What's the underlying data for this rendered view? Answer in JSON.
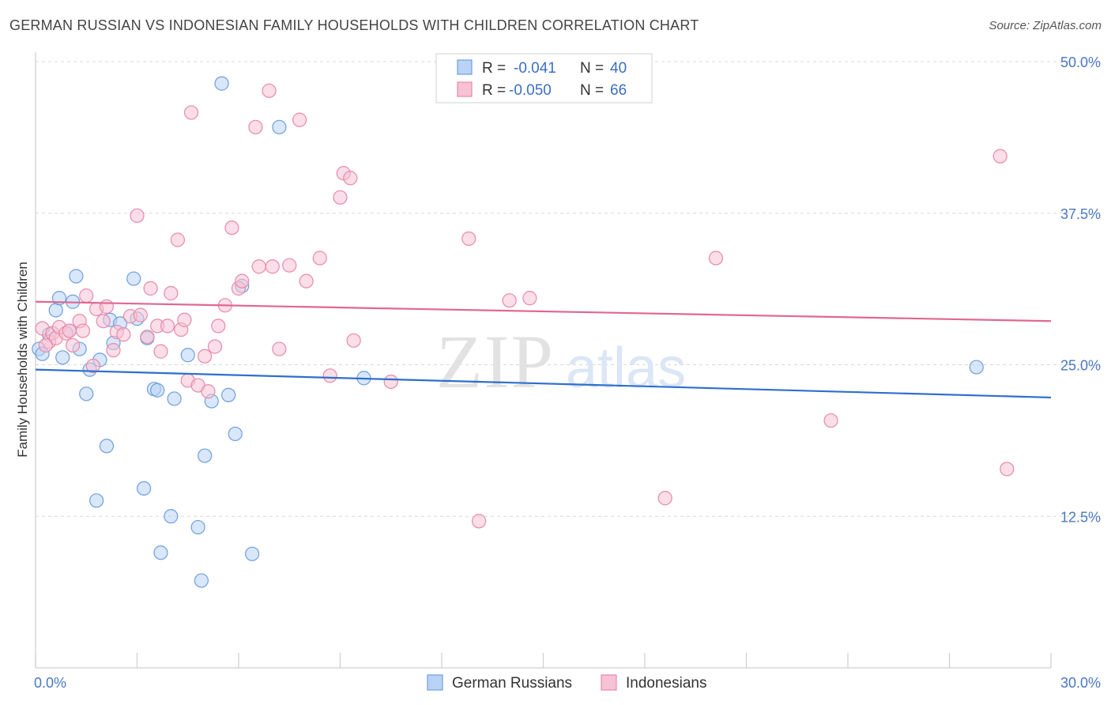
{
  "title": "GERMAN RUSSIAN VS INDONESIAN FAMILY HOUSEHOLDS WITH CHILDREN CORRELATION CHART",
  "source": "Source: ZipAtlas.com",
  "colors": {
    "blue_fill": "#b8d3f5",
    "blue_stroke": "#6f9fdc",
    "blue_line": "#2e6fcc",
    "pink_fill": "#f7c2d4",
    "pink_stroke": "#e88aaa",
    "pink_line": "#e06890",
    "grid": "#d8d8d8",
    "axis_text": "#4a78c4"
  },
  "legend": {
    "rows": [
      {
        "r_label": "R =",
        "r_value": "-0.041",
        "n_label": "N =",
        "n_value": "40"
      },
      {
        "r_label": "R =",
        "r_value": "-0.050",
        "n_label": "N =",
        "n_value": "66"
      }
    ]
  },
  "watermark": {
    "zip": "ZIP",
    "atlas": "atlas"
  },
  "chart_data": {
    "type": "scatter",
    "title": "GERMAN RUSSIAN VS INDONESIAN FAMILY HOUSEHOLDS WITH CHILDREN CORRELATION CHART",
    "xlabel": "",
    "ylabel": "Family Households with Children",
    "xlim": [
      0,
      30
    ],
    "ylim": [
      0,
      50
    ],
    "x_tick_labels": [
      "0.0%",
      "30.0%"
    ],
    "y_ticks": [
      12.5,
      25.0,
      37.5,
      50.0
    ],
    "y_tick_labels": [
      "12.5%",
      "25.0%",
      "37.5%",
      "50.0%"
    ],
    "grid": true,
    "series": [
      {
        "name": "German Russians",
        "trend": [
          [
            0,
            24.6
          ],
          [
            30,
            22.3
          ]
        ],
        "points": [
          [
            0.1,
            26.3
          ],
          [
            0.4,
            27.5
          ],
          [
            0.6,
            29.5
          ],
          [
            0.8,
            25.6
          ],
          [
            0.7,
            30.5
          ],
          [
            1.0,
            27.8
          ],
          [
            1.1,
            30.2
          ],
          [
            1.2,
            32.3
          ],
          [
            1.3,
            26.3
          ],
          [
            1.5,
            22.6
          ],
          [
            1.6,
            24.6
          ],
          [
            1.8,
            13.8
          ],
          [
            1.9,
            25.4
          ],
          [
            2.1,
            18.3
          ],
          [
            2.2,
            28.7
          ],
          [
            2.3,
            26.8
          ],
          [
            2.5,
            28.4
          ],
          [
            2.9,
            32.1
          ],
          [
            3.0,
            28.8
          ],
          [
            3.2,
            14.8
          ],
          [
            3.3,
            27.2
          ],
          [
            3.5,
            23.0
          ],
          [
            3.6,
            22.9
          ],
          [
            3.7,
            9.5
          ],
          [
            4.0,
            12.5
          ],
          [
            4.1,
            22.2
          ],
          [
            4.5,
            25.8
          ],
          [
            4.8,
            11.6
          ],
          [
            4.9,
            7.2
          ],
          [
            5.0,
            17.5
          ],
          [
            5.2,
            22.0
          ],
          [
            5.5,
            48.2
          ],
          [
            5.7,
            22.5
          ],
          [
            5.9,
            19.3
          ],
          [
            6.1,
            31.5
          ],
          [
            6.4,
            9.4
          ],
          [
            7.2,
            44.6
          ],
          [
            9.7,
            23.9
          ],
          [
            27.8,
            24.8
          ],
          [
            0.2,
            25.9
          ]
        ]
      },
      {
        "name": "Indonesians",
        "trend": [
          [
            0,
            30.2
          ],
          [
            30,
            28.6
          ]
        ],
        "points": [
          [
            0.2,
            28.0
          ],
          [
            0.4,
            26.9
          ],
          [
            0.5,
            27.6
          ],
          [
            0.6,
            27.2
          ],
          [
            0.7,
            28.1
          ],
          [
            0.9,
            27.6
          ],
          [
            1.0,
            27.8
          ],
          [
            1.1,
            26.6
          ],
          [
            1.3,
            28.6
          ],
          [
            1.4,
            27.8
          ],
          [
            1.5,
            30.7
          ],
          [
            1.7,
            24.9
          ],
          [
            1.8,
            29.6
          ],
          [
            2.0,
            28.6
          ],
          [
            2.1,
            29.8
          ],
          [
            2.3,
            26.2
          ],
          [
            2.4,
            27.7
          ],
          [
            2.6,
            27.5
          ],
          [
            2.8,
            29.0
          ],
          [
            3.0,
            37.3
          ],
          [
            3.1,
            29.1
          ],
          [
            3.3,
            27.3
          ],
          [
            3.4,
            31.3
          ],
          [
            3.6,
            28.2
          ],
          [
            3.7,
            26.1
          ],
          [
            3.9,
            28.2
          ],
          [
            4.0,
            30.9
          ],
          [
            4.2,
            35.3
          ],
          [
            4.3,
            27.9
          ],
          [
            4.4,
            28.7
          ],
          [
            4.5,
            23.7
          ],
          [
            4.6,
            45.8
          ],
          [
            4.8,
            23.3
          ],
          [
            5.0,
            25.7
          ],
          [
            5.1,
            22.8
          ],
          [
            5.3,
            26.5
          ],
          [
            5.4,
            28.2
          ],
          [
            5.6,
            29.9
          ],
          [
            5.8,
            36.3
          ],
          [
            6.0,
            31.3
          ],
          [
            6.1,
            31.9
          ],
          [
            6.5,
            44.6
          ],
          [
            6.6,
            33.1
          ],
          [
            6.9,
            47.6
          ],
          [
            7.0,
            33.1
          ],
          [
            7.2,
            26.3
          ],
          [
            7.5,
            33.2
          ],
          [
            7.8,
            45.2
          ],
          [
            8.0,
            31.9
          ],
          [
            8.4,
            33.8
          ],
          [
            8.7,
            24.1
          ],
          [
            9.0,
            38.8
          ],
          [
            9.1,
            40.8
          ],
          [
            9.3,
            40.4
          ],
          [
            9.4,
            27.0
          ],
          [
            10.5,
            23.6
          ],
          [
            12.8,
            35.4
          ],
          [
            13.1,
            12.1
          ],
          [
            14.0,
            30.3
          ],
          [
            14.6,
            30.5
          ],
          [
            18.6,
            14.0
          ],
          [
            20.1,
            33.8
          ],
          [
            23.5,
            20.4
          ],
          [
            28.5,
            42.2
          ],
          [
            28.7,
            16.4
          ],
          [
            0.3,
            26.6
          ]
        ]
      }
    ]
  }
}
